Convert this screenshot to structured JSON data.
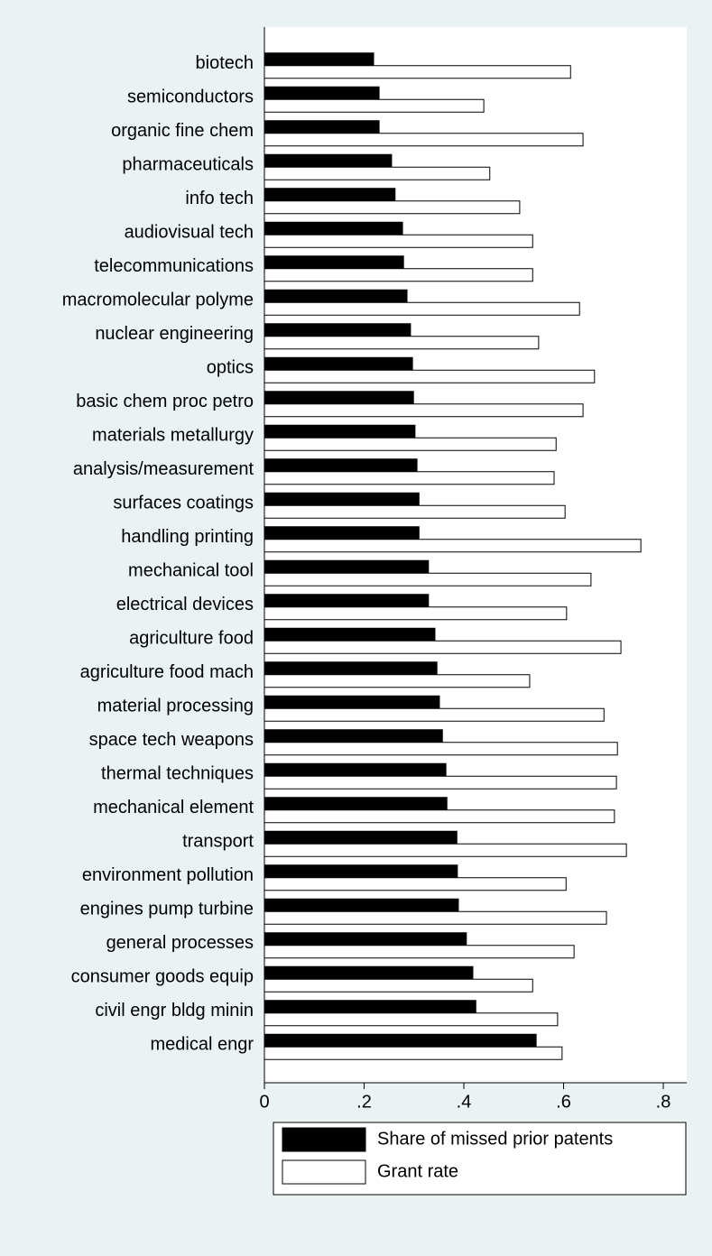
{
  "chart_data": {
    "type": "hbar",
    "categories": [
      "biotech",
      "semiconductors",
      "organic fine chem",
      "pharmaceuticals",
      "info tech",
      "audiovisual tech",
      "telecommunications",
      "macromolecular polyme",
      "nuclear engineering",
      "optics",
      "basic chem proc petro",
      "materials metallurgy",
      "analysis/measurement",
      "surfaces coatings",
      "handling printing",
      "mechanical tool",
      "electrical devices",
      "agriculture food",
      "agriculture food mach",
      "material processing",
      "space tech weapons",
      "thermal techniques",
      "mechanical element",
      "transport",
      "environment pollution",
      "engines pump turbine",
      "general processes",
      "consumer goods equip",
      "civil engr bldg minin",
      "medical engr"
    ],
    "series": [
      {
        "name": "Share of missed prior patents",
        "color": "#000000",
        "values": [
          0.219,
          0.23,
          0.23,
          0.255,
          0.262,
          0.277,
          0.279,
          0.286,
          0.293,
          0.297,
          0.299,
          0.302,
          0.306,
          0.31,
          0.31,
          0.329,
          0.329,
          0.342,
          0.346,
          0.351,
          0.357,
          0.364,
          0.366,
          0.386,
          0.387,
          0.389,
          0.405,
          0.418,
          0.424,
          0.545
        ]
      },
      {
        "name": "Grant rate",
        "color": "#ffffff",
        "values": [
          0.614,
          0.44,
          0.639,
          0.452,
          0.512,
          0.538,
          0.538,
          0.632,
          0.55,
          0.662,
          0.639,
          0.585,
          0.581,
          0.603,
          0.755,
          0.655,
          0.606,
          0.715,
          0.532,
          0.681,
          0.708,
          0.706,
          0.702,
          0.726,
          0.605,
          0.686,
          0.621,
          0.538,
          0.588,
          0.597
        ]
      }
    ],
    "xlim": [
      0,
      0.847
    ],
    "xticks": [
      0,
      {
        "value": 0.2,
        "label": ".2"
      },
      {
        "value": 0.4,
        "label": ".4"
      },
      {
        "value": 0.6,
        "label": ".6"
      },
      {
        "value": 0.8,
        "label": ".8"
      }
    ]
  }
}
